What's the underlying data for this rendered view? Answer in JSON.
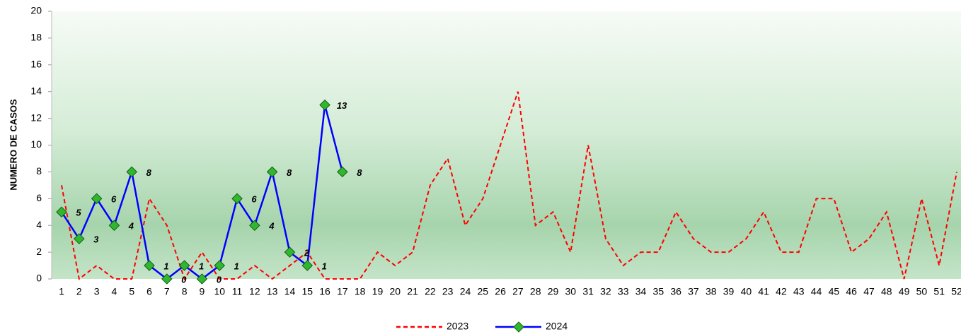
{
  "chart_data": {
    "type": "line",
    "y_label": "NUMERO DE CASOS",
    "categories": [
      "1",
      "2",
      "3",
      "4",
      "5",
      "6",
      "7",
      "8",
      "9",
      "10",
      "11",
      "12",
      "13",
      "14",
      "15",
      "16",
      "17",
      "18",
      "19",
      "20",
      "21",
      "22",
      "23",
      "24",
      "25",
      "26",
      "27",
      "28",
      "29",
      "30",
      "31",
      "32",
      "33",
      "34",
      "35",
      "36",
      "37",
      "38",
      "39",
      "40",
      "41",
      "42",
      "43",
      "44",
      "45",
      "46",
      "47",
      "48",
      "49",
      "50",
      "51",
      "52"
    ],
    "series": [
      {
        "name": "2023",
        "color": "#ff0000",
        "line_style": "dashed",
        "markers": false,
        "data_labels": false,
        "values": [
          7,
          0,
          1,
          0,
          0,
          6,
          4,
          0,
          2,
          0,
          0,
          1,
          0,
          1,
          2,
          0,
          0,
          0,
          2,
          1,
          2,
          7,
          9,
          4,
          6,
          10,
          14,
          4,
          5,
          2,
          10,
          3,
          1,
          2,
          2,
          5,
          3,
          2,
          2,
          3,
          5,
          2,
          2,
          6,
          6,
          2,
          3,
          5,
          0,
          6,
          1,
          8
        ]
      },
      {
        "name": "2024",
        "color": "#0000ff",
        "line_style": "solid",
        "markers": true,
        "marker_color": "#2db82d",
        "data_labels": true,
        "values": [
          5,
          3,
          6,
          4,
          8,
          1,
          0,
          1,
          0,
          1,
          6,
          4,
          8,
          2,
          1,
          13,
          8,
          null,
          null,
          null,
          null,
          null,
          null,
          null,
          null,
          null,
          null,
          null,
          null,
          null,
          null,
          null,
          null,
          null,
          null,
          null,
          null,
          null,
          null,
          null,
          null,
          null,
          null,
          null,
          null,
          null,
          null,
          null,
          null,
          null,
          null,
          null
        ]
      }
    ],
    "ylim": [
      0,
      20
    ],
    "yticks": [
      0,
      2,
      4,
      6,
      8,
      10,
      12,
      14,
      16,
      18,
      20
    ],
    "legend": "bottom"
  }
}
